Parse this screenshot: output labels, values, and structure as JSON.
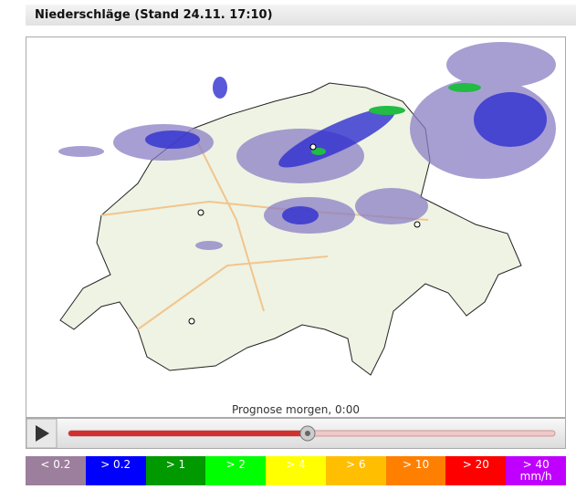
{
  "header": {
    "title": "Niederschläge (Stand 24.11. 17:10)"
  },
  "map": {
    "caption": "Prognose morgen, 0:00"
  },
  "legend": {
    "items": [
      {
        "label": "< 0.2",
        "color": "#9c7f9c"
      },
      {
        "label": "> 0.2",
        "color": "#0000ff"
      },
      {
        "label": "> 1",
        "color": "#009900"
      },
      {
        "label": "> 2",
        "color": "#00ff00"
      },
      {
        "label": "> 4",
        "color": "#ffff00"
      },
      {
        "label": "> 6",
        "color": "#ffbf00"
      },
      {
        "label": "> 10",
        "color": "#ff7f00"
      },
      {
        "label": "> 20",
        "color": "#ff0000"
      },
      {
        "label": "> 40",
        "unit": "mm/h",
        "color": "#bf00ff"
      }
    ]
  }
}
